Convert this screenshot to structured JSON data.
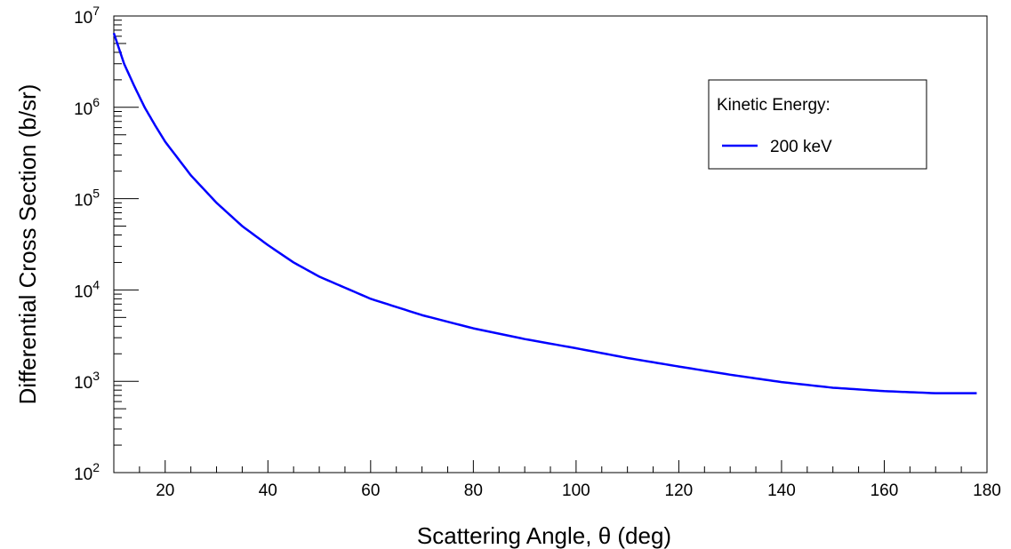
{
  "chart_data": {
    "type": "line",
    "xlabel": "Scattering Angle, θ (deg)",
    "ylabel": "Differential Cross Section (b/sr)",
    "xlim": [
      10,
      180
    ],
    "ylim": [
      100,
      10000000
    ],
    "yscale": "log",
    "x_ticks": [
      20,
      40,
      60,
      80,
      100,
      120,
      140,
      160,
      180
    ],
    "y_tick_exponents": [
      2,
      3,
      4,
      5,
      6,
      7
    ],
    "y_tick_base": "10",
    "grid": false,
    "legend": {
      "title": "Kinetic Energy:",
      "placement": "top-right",
      "entries": [
        "200 keV"
      ]
    },
    "series": [
      {
        "name": "200 keV",
        "color": "#0000ff",
        "x": [
          10,
          12,
          14,
          16,
          18,
          20,
          25,
          30,
          35,
          40,
          45,
          50,
          60,
          70,
          80,
          90,
          100,
          110,
          120,
          130,
          140,
          150,
          160,
          170,
          178
        ],
        "y": [
          6500000,
          3000000,
          1700000,
          1000000,
          640000,
          420000,
          180000,
          90000,
          50000,
          31000,
          20000,
          14000,
          8000,
          5300,
          3800,
          2900,
          2300,
          1800,
          1450,
          1180,
          980,
          850,
          780,
          740,
          740
        ]
      }
    ]
  }
}
